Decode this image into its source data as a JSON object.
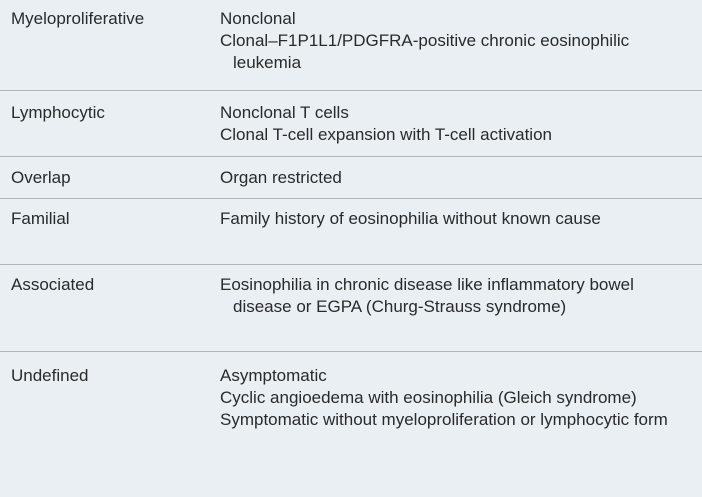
{
  "rows": [
    {
      "category": "Myeloproliferative",
      "entries": [
        "Nonclonal",
        "Clonal–F1P1L1/PDGFRA-positive chronic eosinophilic leukemia"
      ]
    },
    {
      "category": "Lymphocytic",
      "entries": [
        "Nonclonal T cells",
        "Clonal T-cell expansion with T-cell activation"
      ]
    },
    {
      "category": "Overlap",
      "entries": [
        "Organ restricted"
      ]
    },
    {
      "category": "Familial",
      "entries": [
        "Family history of eosinophilia without known cause"
      ]
    },
    {
      "category": "Associated",
      "entries": [
        "Eosinophilia in chronic disease like inflammatory bowel disease or EGPA (Churg-Strauss syndrome)"
      ]
    },
    {
      "category": "Undefined",
      "entries": [
        "Asymptomatic",
        "Cyclic angioedema with eosinophilia (Gleich syndrome)",
        "Symptomatic without myeloproliferation or lymphocytic form"
      ]
    }
  ]
}
